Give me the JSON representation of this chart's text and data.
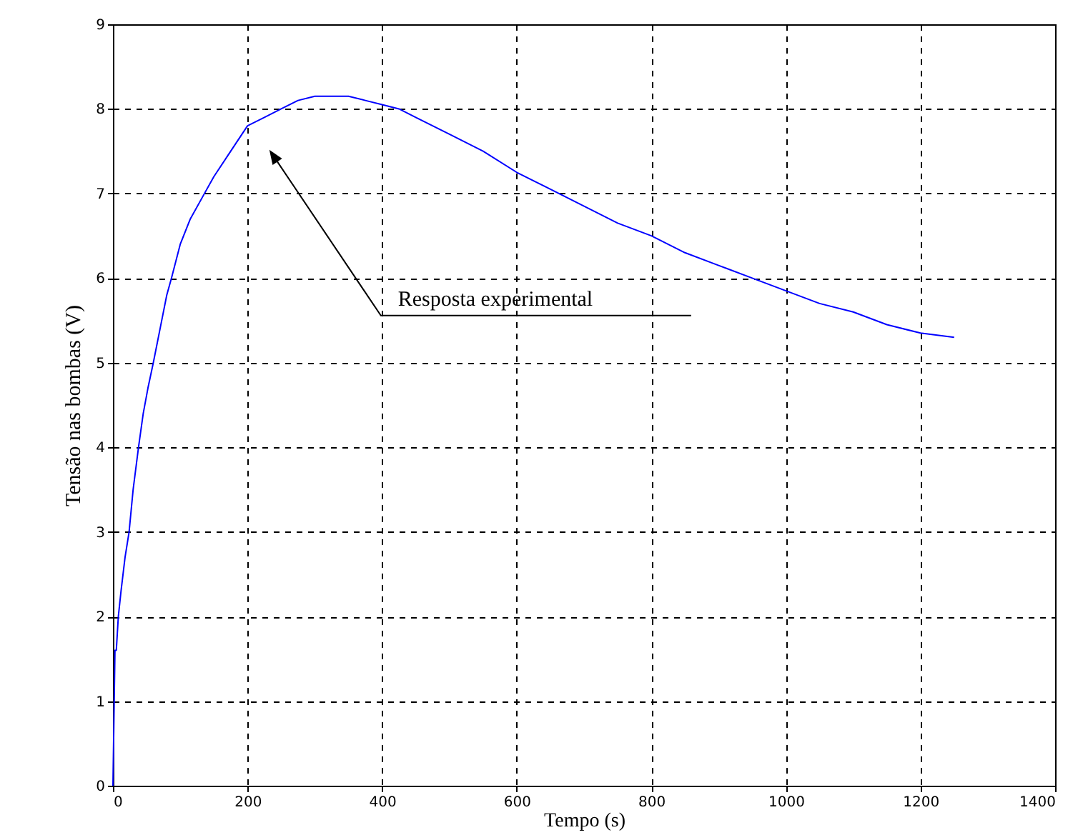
{
  "chart_data": {
    "type": "line",
    "xlabel": "Tempo (s)",
    "ylabel": "Tensão nas bombas (V)",
    "xlim": [
      0,
      1400
    ],
    "xticks": [
      0,
      200,
      400,
      600,
      800,
      1000,
      1200,
      1400
    ],
    "ylim": [
      0,
      9
    ],
    "yticks": [
      0,
      1,
      2,
      3,
      4,
      5,
      6,
      7,
      8,
      9
    ],
    "grid": true,
    "annotations": [
      "Resposta experimental"
    ],
    "series": [
      {
        "color": "#0000ff",
        "x": [
          0,
          3,
          5,
          8,
          12,
          18,
          24,
          30,
          38,
          45,
          52,
          60,
          70,
          80,
          87,
          100,
          115,
          136,
          150,
          175,
          200,
          225,
          250,
          275,
          300,
          325,
          350,
          375,
          400,
          425,
          450,
          500,
          550,
          600,
          650,
          700,
          750,
          800,
          850,
          900,
          950,
          1000,
          1050,
          1100,
          1150,
          1200,
          1250
        ],
        "values": [
          0,
          1.6,
          1.6,
          2.0,
          2.3,
          2.7,
          3.0,
          3.5,
          4.0,
          4.4,
          4.7,
          5.0,
          5.4,
          5.8,
          6.0,
          6.4,
          6.7,
          7.0,
          7.2,
          7.5,
          7.8,
          7.9,
          8.0,
          8.1,
          8.15,
          8.15,
          8.15,
          8.1,
          8.05,
          8.0,
          7.9,
          7.7,
          7.5,
          7.25,
          7.05,
          6.85,
          6.65,
          6.5,
          6.3,
          6.15,
          6.0,
          5.85,
          5.7,
          5.6,
          5.45,
          5.35,
          5.3
        ]
      }
    ]
  }
}
